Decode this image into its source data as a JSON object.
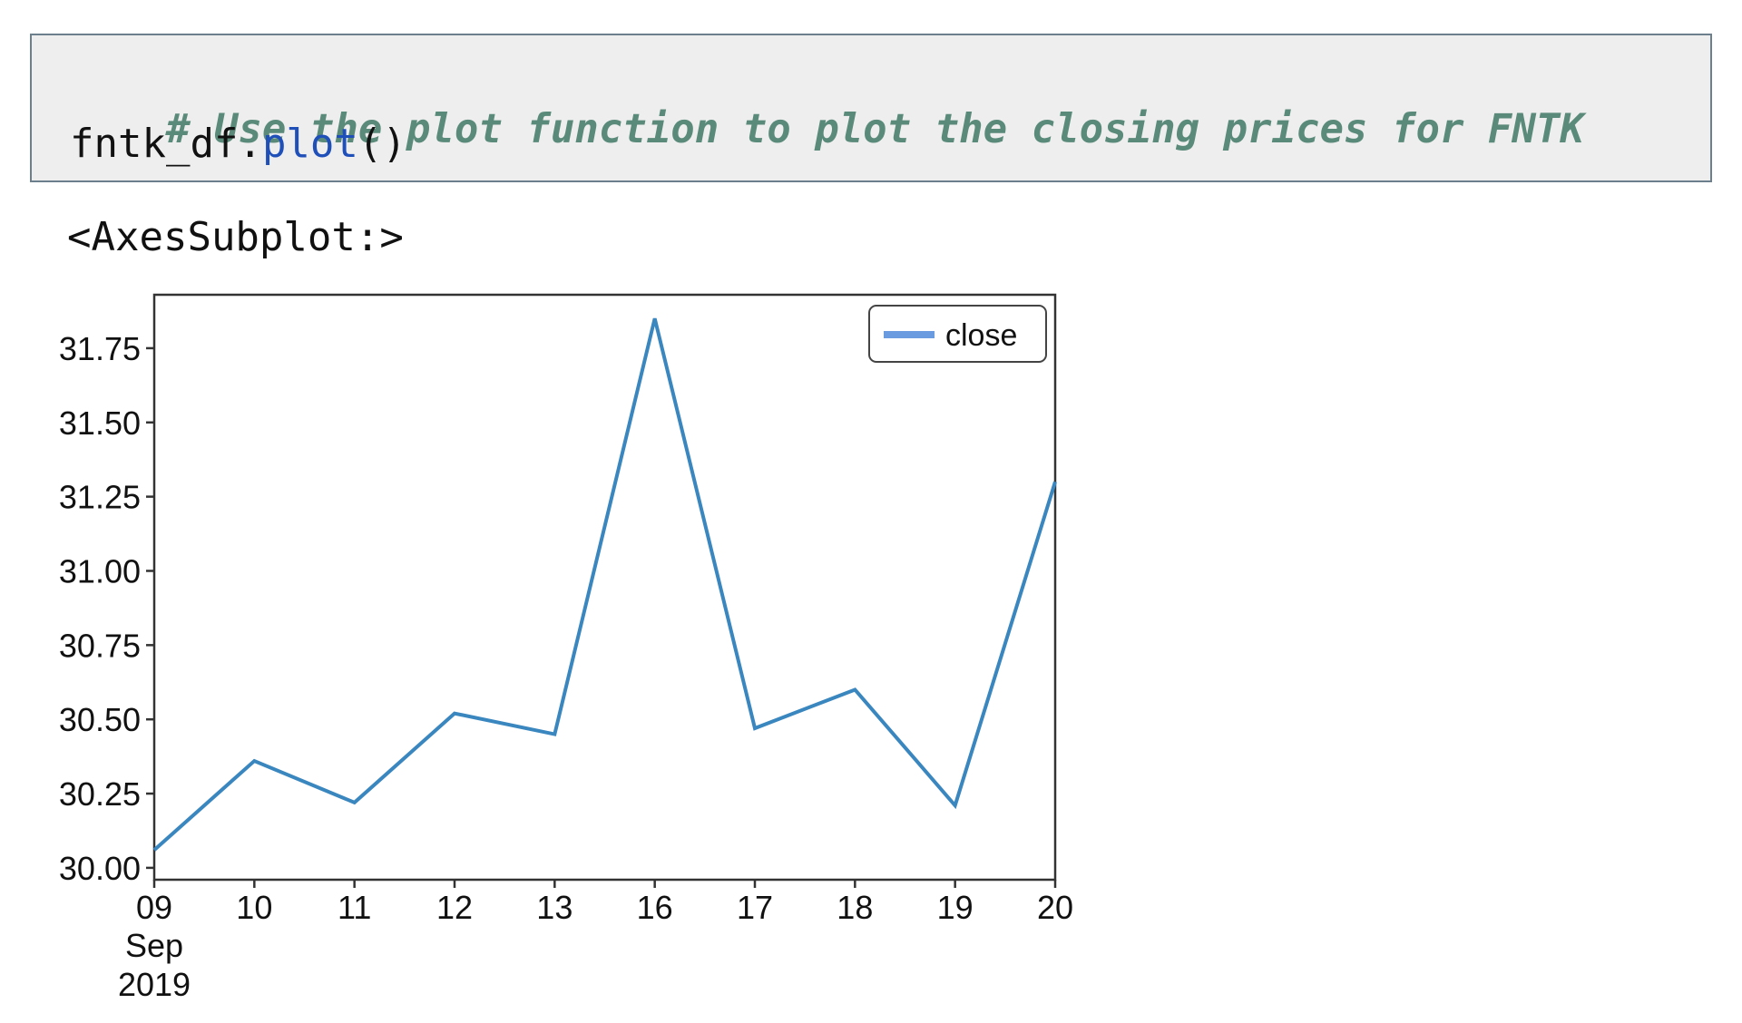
{
  "notebook": {
    "code_cell": {
      "comment": "# Use the plot function to plot the closing prices for FNTK",
      "code_object": "fntk_df",
      "code_dot": ".",
      "code_method": "plot",
      "code_parens": "()"
    },
    "output_text": "<AxesSubplot:>"
  },
  "colors": {
    "line": "#3a86bf",
    "legend_swatch": "#6a9ae0",
    "axes": "#333333",
    "comment": "#5a8a7a",
    "method": "#1f4fb8"
  },
  "chart_data": {
    "type": "line",
    "x": [
      "09",
      "10",
      "11",
      "12",
      "13",
      "16",
      "17",
      "18",
      "19",
      "20"
    ],
    "x_sublabels": [
      "Sep",
      "2019"
    ],
    "series": [
      {
        "name": "close",
        "values": [
          30.06,
          30.36,
          30.22,
          30.52,
          30.45,
          31.85,
          30.47,
          30.6,
          30.21,
          31.3
        ]
      }
    ],
    "yticks": [
      "30.00",
      "30.25",
      "30.50",
      "30.75",
      "31.00",
      "31.25",
      "31.50",
      "31.75"
    ],
    "ylim": [
      29.96,
      31.93
    ],
    "legend": "upper right",
    "grid": false
  }
}
